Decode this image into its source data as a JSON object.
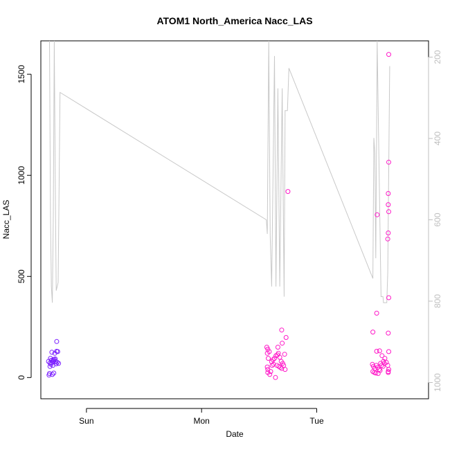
{
  "chart_data": {
    "type": "scatter",
    "title": "ATOM1 North_America Nacc_LAS",
    "xlabel": "Date",
    "ylabel": "Nacc_LAS",
    "x_unit": "hours",
    "x_ticks": [
      {
        "x": 0,
        "label": "Sun"
      },
      {
        "x": 24,
        "label": "Mon"
      },
      {
        "x": 48,
        "label": "Tue"
      }
    ],
    "xlim": [
      -9.5,
      71.3
    ],
    "ylim": [
      -105,
      1665
    ],
    "y_ticks": [
      0,
      500,
      1000,
      1500
    ],
    "y2_ticks": [
      200,
      400,
      600,
      800,
      1000
    ],
    "y2lim": [
      1040,
      160
    ],
    "grid": false,
    "colors": {
      "line": "#c8c8c8",
      "early": "#7a1fff",
      "late": "#ff19c8",
      "right_axis": "#bfbfbf"
    },
    "line_series": {
      "name": "",
      "points": [
        [
          -7.7,
          1665
        ],
        [
          -7.5,
          800
        ],
        [
          -7.3,
          450
        ],
        [
          -7.1,
          370
        ],
        [
          -6.9,
          800
        ],
        [
          -6.7,
          1665
        ],
        [
          -6.5,
          980
        ],
        [
          -6.3,
          430
        ],
        [
          -5.9,
          470
        ],
        [
          -5.5,
          1410
        ],
        [
          37.5,
          780
        ],
        [
          37.7,
          710
        ],
        [
          38.0,
          1665
        ],
        [
          38.3,
          700
        ],
        [
          38.6,
          450
        ],
        [
          39.2,
          1590
        ],
        [
          39.5,
          450
        ],
        [
          39.9,
          1430
        ],
        [
          40.3,
          450
        ],
        [
          40.8,
          1430
        ],
        [
          41.2,
          400
        ],
        [
          41.4,
          1320
        ],
        [
          41.9,
          1320
        ],
        [
          42.2,
          1530
        ],
        [
          59.7,
          490
        ],
        [
          59.9,
          1185
        ],
        [
          60.1,
          1110
        ],
        [
          60.3,
          590
        ],
        [
          60.6,
          1665
        ],
        [
          60.9,
          1180
        ],
        [
          61.4,
          400
        ],
        [
          61.8,
          400
        ],
        [
          61.9,
          370
        ],
        [
          62.6,
          370
        ],
        [
          62.8,
          520
        ],
        [
          63.2,
          1540
        ]
      ]
    },
    "series": [
      {
        "name": "",
        "color": "#7a1fff",
        "points": [
          [
            -7.6,
            72
          ],
          [
            -7.3,
            85
          ],
          [
            -7.0,
            80
          ],
          [
            -6.7,
            90
          ],
          [
            -6.4,
            78
          ],
          [
            -6.1,
            75
          ],
          [
            -5.8,
            70
          ],
          [
            -7.5,
            95
          ],
          [
            -7.2,
            125
          ],
          [
            -6.6,
            120
          ],
          [
            -6.2,
            130
          ],
          [
            -6.0,
            128
          ],
          [
            -6.2,
            178
          ],
          [
            -7.8,
            12
          ],
          [
            -7.7,
            20
          ],
          [
            -7.1,
            15
          ],
          [
            -6.8,
            22
          ],
          [
            -7.4,
            65
          ],
          [
            -7.0,
            60
          ],
          [
            -6.5,
            92
          ],
          [
            -6.9,
            88
          ],
          [
            -7.6,
            55
          ],
          [
            -6.3,
            68
          ],
          [
            -7.2,
            74
          ],
          [
            -6.8,
            82
          ],
          [
            -7.9,
            80
          ]
        ]
      },
      {
        "name": "",
        "color": "#ff19c8",
        "points": [
          [
            37.6,
            150
          ],
          [
            37.8,
            140
          ],
          [
            38.1,
            128
          ],
          [
            37.7,
            120
          ],
          [
            37.9,
            95
          ],
          [
            37.7,
            52
          ],
          [
            37.8,
            40
          ],
          [
            37.8,
            25
          ],
          [
            38.2,
            15
          ],
          [
            38.4,
            30
          ],
          [
            38.6,
            78
          ],
          [
            38.9,
            88
          ],
          [
            39.2,
            95
          ],
          [
            39.5,
            108
          ],
          [
            39.8,
            112
          ],
          [
            40.0,
            120
          ],
          [
            40.3,
            100
          ],
          [
            40.6,
            80
          ],
          [
            40.9,
            70
          ],
          [
            41.1,
            60
          ],
          [
            41.4,
            40
          ],
          [
            39.7,
            60
          ],
          [
            40.1,
            55
          ],
          [
            40.4,
            50
          ],
          [
            40.7,
            45
          ],
          [
            39.4,
            0
          ],
          [
            40.7,
            235
          ],
          [
            40.8,
            170
          ],
          [
            41.6,
            198
          ],
          [
            41.3,
            115
          ],
          [
            39.0,
            65
          ],
          [
            39.9,
            150
          ],
          [
            38.7,
            60
          ],
          [
            42.0,
            920
          ],
          [
            59.6,
            65
          ],
          [
            59.8,
            55
          ],
          [
            60.1,
            45
          ],
          [
            60.4,
            60
          ],
          [
            60.7,
            50
          ],
          [
            61.0,
            40
          ],
          [
            61.3,
            70
          ],
          [
            61.5,
            60
          ],
          [
            61.8,
            55
          ],
          [
            62.1,
            70
          ],
          [
            59.7,
            30
          ],
          [
            60.0,
            25
          ],
          [
            60.3,
            22
          ],
          [
            60.8,
            20
          ],
          [
            61.2,
            35
          ],
          [
            61.9,
            80
          ],
          [
            62.2,
            95
          ],
          [
            62.5,
            75
          ],
          [
            62.8,
            60
          ],
          [
            60.5,
            130
          ],
          [
            61.1,
            132
          ],
          [
            61.6,
            108
          ],
          [
            59.7,
            225
          ],
          [
            60.5,
            318
          ],
          [
            60.6,
            805
          ],
          [
            62.9,
            25
          ],
          [
            62.9,
            30
          ],
          [
            63.0,
            40
          ],
          [
            63.0,
            128
          ],
          [
            62.9,
            220
          ],
          [
            63.0,
            395
          ],
          [
            62.8,
            685
          ],
          [
            62.9,
            715
          ],
          [
            63.0,
            820
          ],
          [
            62.9,
            855
          ],
          [
            62.9,
            910
          ],
          [
            63.0,
            1065
          ],
          [
            63.0,
            1598
          ]
        ]
      }
    ]
  }
}
